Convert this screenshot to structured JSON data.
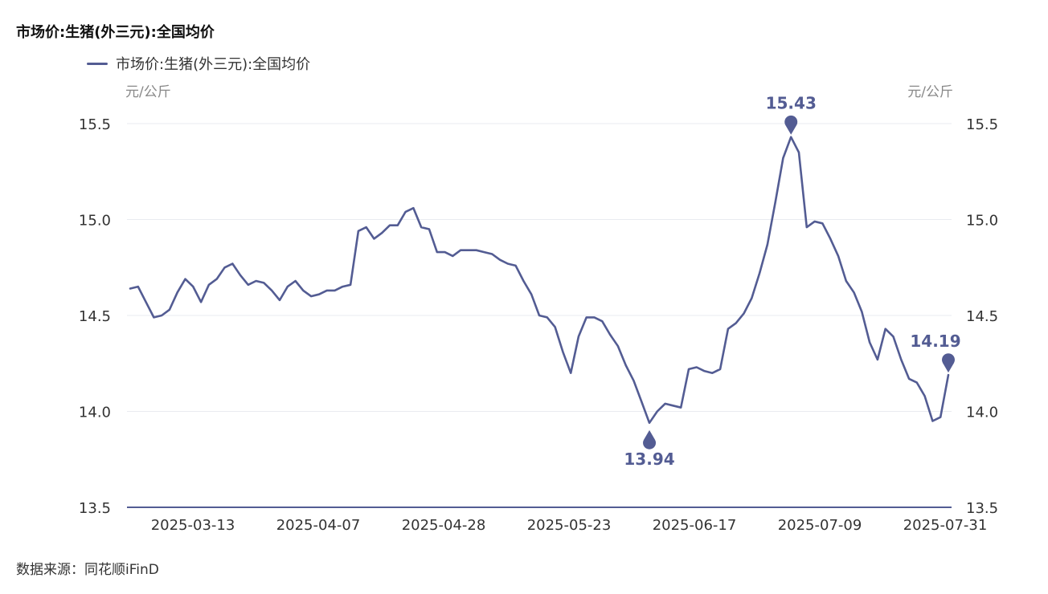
{
  "title": "市场价:生猪(外三元):全国均价",
  "legend": {
    "label": "市场价:生猪(外三元):全国均价",
    "color": "#535c93"
  },
  "unit_left": "元/公斤",
  "unit_right": "元/公斤",
  "source": "数据来源：同花顺iFinD",
  "chart_data": {
    "type": "line",
    "title": "市场价:生猪(外三元):全国均价",
    "ylabel": "元/公斤",
    "ylim": [
      13.5,
      15.5
    ],
    "yticks": [
      "13.5",
      "14.0",
      "14.5",
      "15.0",
      "15.5"
    ],
    "xticks": [
      "2025-03-13",
      "2025-04-07",
      "2025-04-28",
      "2025-05-23",
      "2025-06-17",
      "2025-07-09",
      "2025-07-31"
    ],
    "grid": true,
    "legend_position": "top-left",
    "series": [
      {
        "name": "市场价:生猪(外三元):全国均价",
        "color": "#535c93",
        "values": [
          14.64,
          14.65,
          14.57,
          14.49,
          14.5,
          14.53,
          14.62,
          14.69,
          14.65,
          14.57,
          14.66,
          14.69,
          14.75,
          14.77,
          14.71,
          14.66,
          14.68,
          14.67,
          14.63,
          14.58,
          14.65,
          14.68,
          14.63,
          14.6,
          14.61,
          14.63,
          14.63,
          14.65,
          14.66,
          14.94,
          14.96,
          14.9,
          14.93,
          14.97,
          14.97,
          15.04,
          15.06,
          14.96,
          14.95,
          14.83,
          14.83,
          14.81,
          14.84,
          14.84,
          14.84,
          14.83,
          14.82,
          14.79,
          14.77,
          14.76,
          14.68,
          14.61,
          14.5,
          14.49,
          14.44,
          14.31,
          14.2,
          14.39,
          14.49,
          14.49,
          14.47,
          14.4,
          14.34,
          14.24,
          14.16,
          14.05,
          13.94,
          14.0,
          14.04,
          14.03,
          14.02,
          14.22,
          14.23,
          14.21,
          14.2,
          14.22,
          14.43,
          14.46,
          14.51,
          14.59,
          14.72,
          14.87,
          15.09,
          15.32,
          15.43,
          15.35,
          14.96,
          14.99,
          14.98,
          14.9,
          14.81,
          14.68,
          14.62,
          14.52,
          14.36,
          14.27,
          14.43,
          14.39,
          14.27,
          14.17,
          14.15,
          14.08,
          13.95,
          13.97,
          14.19
        ]
      }
    ],
    "annotations": [
      {
        "label": "15.43",
        "type": "max",
        "value": 15.43
      },
      {
        "label": "13.94",
        "type": "min",
        "value": 13.94
      },
      {
        "label": "14.19",
        "type": "last",
        "value": 14.19
      }
    ]
  }
}
